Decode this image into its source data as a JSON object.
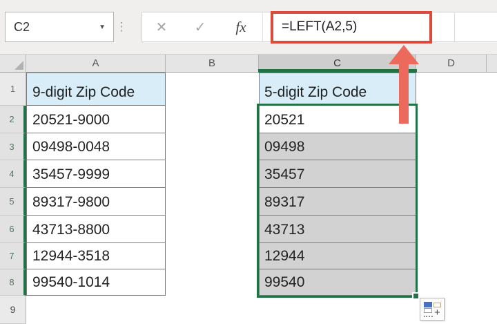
{
  "name_box": {
    "value": "C2",
    "dropdown_icon": "▼",
    "resizer_icon": "⋮"
  },
  "formula_bar": {
    "cancel_icon": "✕",
    "enter_icon": "✓",
    "function_icon": "fx",
    "formula": "=LEFT(A2,5)"
  },
  "column_headers": [
    "A",
    "B",
    "C",
    "D"
  ],
  "row_headers": [
    "1",
    "2",
    "3",
    "4",
    "5",
    "6",
    "7",
    "8",
    "9"
  ],
  "sheet": {
    "col_a": {
      "header": "9-digit Zip Code",
      "values": [
        "20521-9000",
        "09498-0048",
        "35457-9999",
        "89317-9800",
        "43713-8800",
        "12944-3518",
        "99540-1014"
      ]
    },
    "col_c": {
      "header": "5-digit Zip Code",
      "values": [
        "20521",
        "09498",
        "35457",
        "89317",
        "43713",
        "12944",
        "99540"
      ]
    }
  },
  "selection": {
    "active_cell": "C2",
    "range": "C2:C8"
  },
  "autofill_button": {
    "plus_icon": "+"
  },
  "colors": {
    "selection_green": "#217346",
    "annotation_red": "#dc4a3b",
    "arrow_red": "#ec6a5b",
    "header_fill_blue": "#d8edf8",
    "selected_cell_gray": "#d2d2d2"
  }
}
